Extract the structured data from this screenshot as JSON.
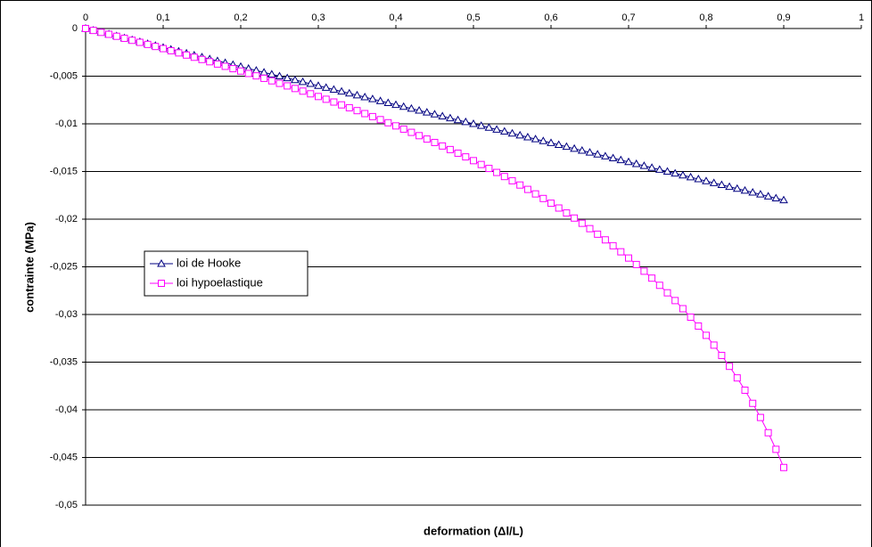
{
  "chart_data": {
    "type": "line",
    "xlabel": "deformation (Δl/L)",
    "ylabel": "contrainte (MPa)",
    "xlim": [
      0,
      1
    ],
    "ylim": [
      -0.05,
      0
    ],
    "xticks": [
      0,
      {
        "value": 0.1,
        "label": "0,1"
      },
      {
        "value": 0.2,
        "label": "0,2"
      },
      {
        "value": 0.3,
        "label": "0,3"
      },
      {
        "value": 0.4,
        "label": "0,4"
      },
      {
        "value": 0.5,
        "label": "0,5"
      },
      {
        "value": 0.6,
        "label": "0,6"
      },
      {
        "value": 0.7,
        "label": "0,7"
      },
      {
        "value": 0.8,
        "label": "0,8"
      },
      {
        "value": 0.9,
        "label": "0,9"
      },
      1
    ],
    "yticks": [
      0,
      {
        "value": -0.005,
        "label": "-0,005"
      },
      {
        "value": -0.01,
        "label": "-0,01"
      },
      {
        "value": -0.015,
        "label": "-0,015"
      },
      {
        "value": -0.02,
        "label": "-0,02"
      },
      {
        "value": -0.025,
        "label": "-0,025"
      },
      {
        "value": -0.03,
        "label": "-0,03"
      },
      {
        "value": -0.035,
        "label": "-0,035"
      },
      {
        "value": -0.04,
        "label": "-0,04"
      },
      {
        "value": -0.045,
        "label": "-0,045"
      },
      {
        "value": -0.05,
        "label": "-0,05"
      }
    ],
    "grid": true,
    "legend": "left",
    "x": [
      0,
      0.01,
      0.02,
      0.03,
      0.04,
      0.05,
      0.06,
      0.07,
      0.08,
      0.09,
      0.1,
      0.11,
      0.12,
      0.13,
      0.14,
      0.15,
      0.16,
      0.17,
      0.18,
      0.19,
      0.2,
      0.21,
      0.22,
      0.23,
      0.24,
      0.25,
      0.26,
      0.27,
      0.28,
      0.29,
      0.3,
      0.31,
      0.32,
      0.33,
      0.34,
      0.35,
      0.36,
      0.37,
      0.38,
      0.39,
      0.4,
      0.41,
      0.42,
      0.43,
      0.44,
      0.45,
      0.46,
      0.47,
      0.48,
      0.49,
      0.5,
      0.51,
      0.52,
      0.53,
      0.54,
      0.55,
      0.56,
      0.57,
      0.58,
      0.59,
      0.6,
      0.61,
      0.62,
      0.63,
      0.64,
      0.65,
      0.66,
      0.67,
      0.68,
      0.69,
      0.7,
      0.71,
      0.72,
      0.73,
      0.74,
      0.75,
      0.76,
      0.77,
      0.78,
      0.79,
      0.8,
      0.81,
      0.82,
      0.83,
      0.84,
      0.85,
      0.86,
      0.87,
      0.88,
      0.89,
      0.9
    ],
    "series": [
      {
        "name": "loi de Hooke",
        "color": "#000080",
        "marker": "triangle",
        "values": [
          0,
          -0.0002,
          -0.0004,
          -0.0006,
          -0.0008,
          -0.001,
          -0.0012,
          -0.0014,
          -0.0016,
          -0.0018,
          -0.002,
          -0.0022,
          -0.0024,
          -0.0026,
          -0.0028,
          -0.003,
          -0.0032,
          -0.0034,
          -0.0036,
          -0.0038,
          -0.004,
          -0.0042,
          -0.0044,
          -0.0046,
          -0.0048,
          -0.005,
          -0.0052,
          -0.0054,
          -0.0056,
          -0.0058,
          -0.006,
          -0.0062,
          -0.0064,
          -0.0066,
          -0.0068,
          -0.007,
          -0.0072,
          -0.0074,
          -0.0076,
          -0.0078,
          -0.008,
          -0.0082,
          -0.0084,
          -0.0086,
          -0.0088,
          -0.009,
          -0.0092,
          -0.0094,
          -0.0096,
          -0.0098,
          -0.01,
          -0.0102,
          -0.0104,
          -0.0106,
          -0.0108,
          -0.011,
          -0.0112,
          -0.0114,
          -0.0116,
          -0.0118,
          -0.012,
          -0.0122,
          -0.0124,
          -0.0126,
          -0.0128,
          -0.013,
          -0.0132,
          -0.0134,
          -0.0136,
          -0.0138,
          -0.014,
          -0.0142,
          -0.0144,
          -0.0146,
          -0.0148,
          -0.015,
          -0.0152,
          -0.0154,
          -0.0156,
          -0.0158,
          -0.016,
          -0.0162,
          -0.0164,
          -0.0166,
          -0.0168,
          -0.017,
          -0.0172,
          -0.0174,
          -0.0176,
          -0.0178,
          -0.018
        ]
      },
      {
        "name": "loi hypoelastique",
        "color": "#ff00ff",
        "marker": "square",
        "values": [
          0,
          -0.000201,
          -0.000404,
          -0.000609,
          -0.000816,
          -0.001026,
          -0.001238,
          -0.001451,
          -0.001668,
          -0.001886,
          -0.002107,
          -0.002331,
          -0.002557,
          -0.002785,
          -0.003016,
          -0.00325,
          -0.003487,
          -0.003727,
          -0.003969,
          -0.004214,
          -0.004463,
          -0.004714,
          -0.004969,
          -0.005227,
          -0.005489,
          -0.005754,
          -0.006022,
          -0.006294,
          -0.00657,
          -0.00685,
          -0.007134,
          -0.007421,
          -0.007713,
          -0.00801,
          -0.00831,
          -0.008616,
          -0.008926,
          -0.009241,
          -0.009561,
          -0.009886,
          -0.010217,
          -0.010553,
          -0.010895,
          -0.011242,
          -0.011596,
          -0.011957,
          -0.012324,
          -0.012698,
          -0.013079,
          -0.013467,
          -0.013863,
          -0.014267,
          -0.014679,
          -0.0151,
          -0.015531,
          -0.01597,
          -0.01642,
          -0.016879,
          -0.01735,
          -0.017832,
          -0.018326,
          -0.018832,
          -0.019352,
          -0.019885,
          -0.020433,
          -0.020996,
          -0.021576,
          -0.022173,
          -0.022789,
          -0.023424,
          -0.024079,
          -0.024757,
          -0.025459,
          -0.026187,
          -0.026941,
          -0.027726,
          -0.028542,
          -0.029394,
          -0.030283,
          -0.031213,
          -0.032189,
          -0.033215,
          -0.034296,
          -0.035439,
          -0.036652,
          -0.037942,
          -0.039322,
          -0.040804,
          -0.042405,
          -0.044146,
          -0.046052
        ]
      }
    ]
  }
}
